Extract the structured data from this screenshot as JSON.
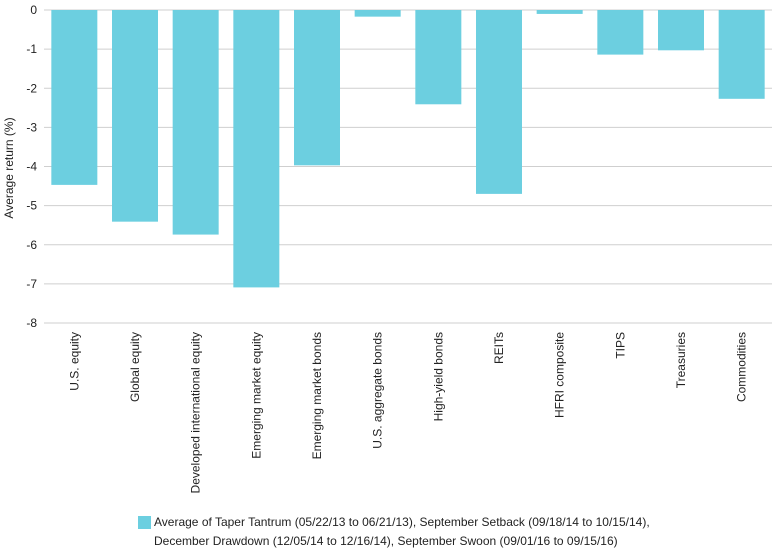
{
  "chart_data": {
    "type": "bar",
    "title": "",
    "ylabel": "Average return (%)",
    "xlabel": "",
    "ylim": [
      -8,
      0
    ],
    "yticks": [
      0,
      -1,
      -2,
      -3,
      -4,
      -5,
      -6,
      -7,
      -8
    ],
    "grid": true,
    "legend_position": "bottom",
    "bar_color": "#6ccfe0",
    "categories": [
      "U.S. equity",
      "Global equity",
      "Developed international equity",
      "Emerging market equity",
      "Emerging market bonds",
      "U.S. aggregate bonds",
      "High-yield bonds",
      "REITs",
      "HFRI composite",
      "TIPS",
      "Treasuries",
      "Commodities"
    ],
    "series": [
      {
        "name": "Average of Taper Tantrum (05/22/13 to 06/21/13), September Setback (09/18/14 to 10/15/14),\nDecember Drawdown (12/05/14 to 12/16/14), September Swoon (09/01/16 to 09/15/16)",
        "values": [
          -4.47,
          -5.41,
          -5.74,
          -7.09,
          -3.97,
          -0.17,
          -2.41,
          -4.7,
          -0.1,
          -1.14,
          -1.03,
          -2.27
        ]
      }
    ]
  }
}
